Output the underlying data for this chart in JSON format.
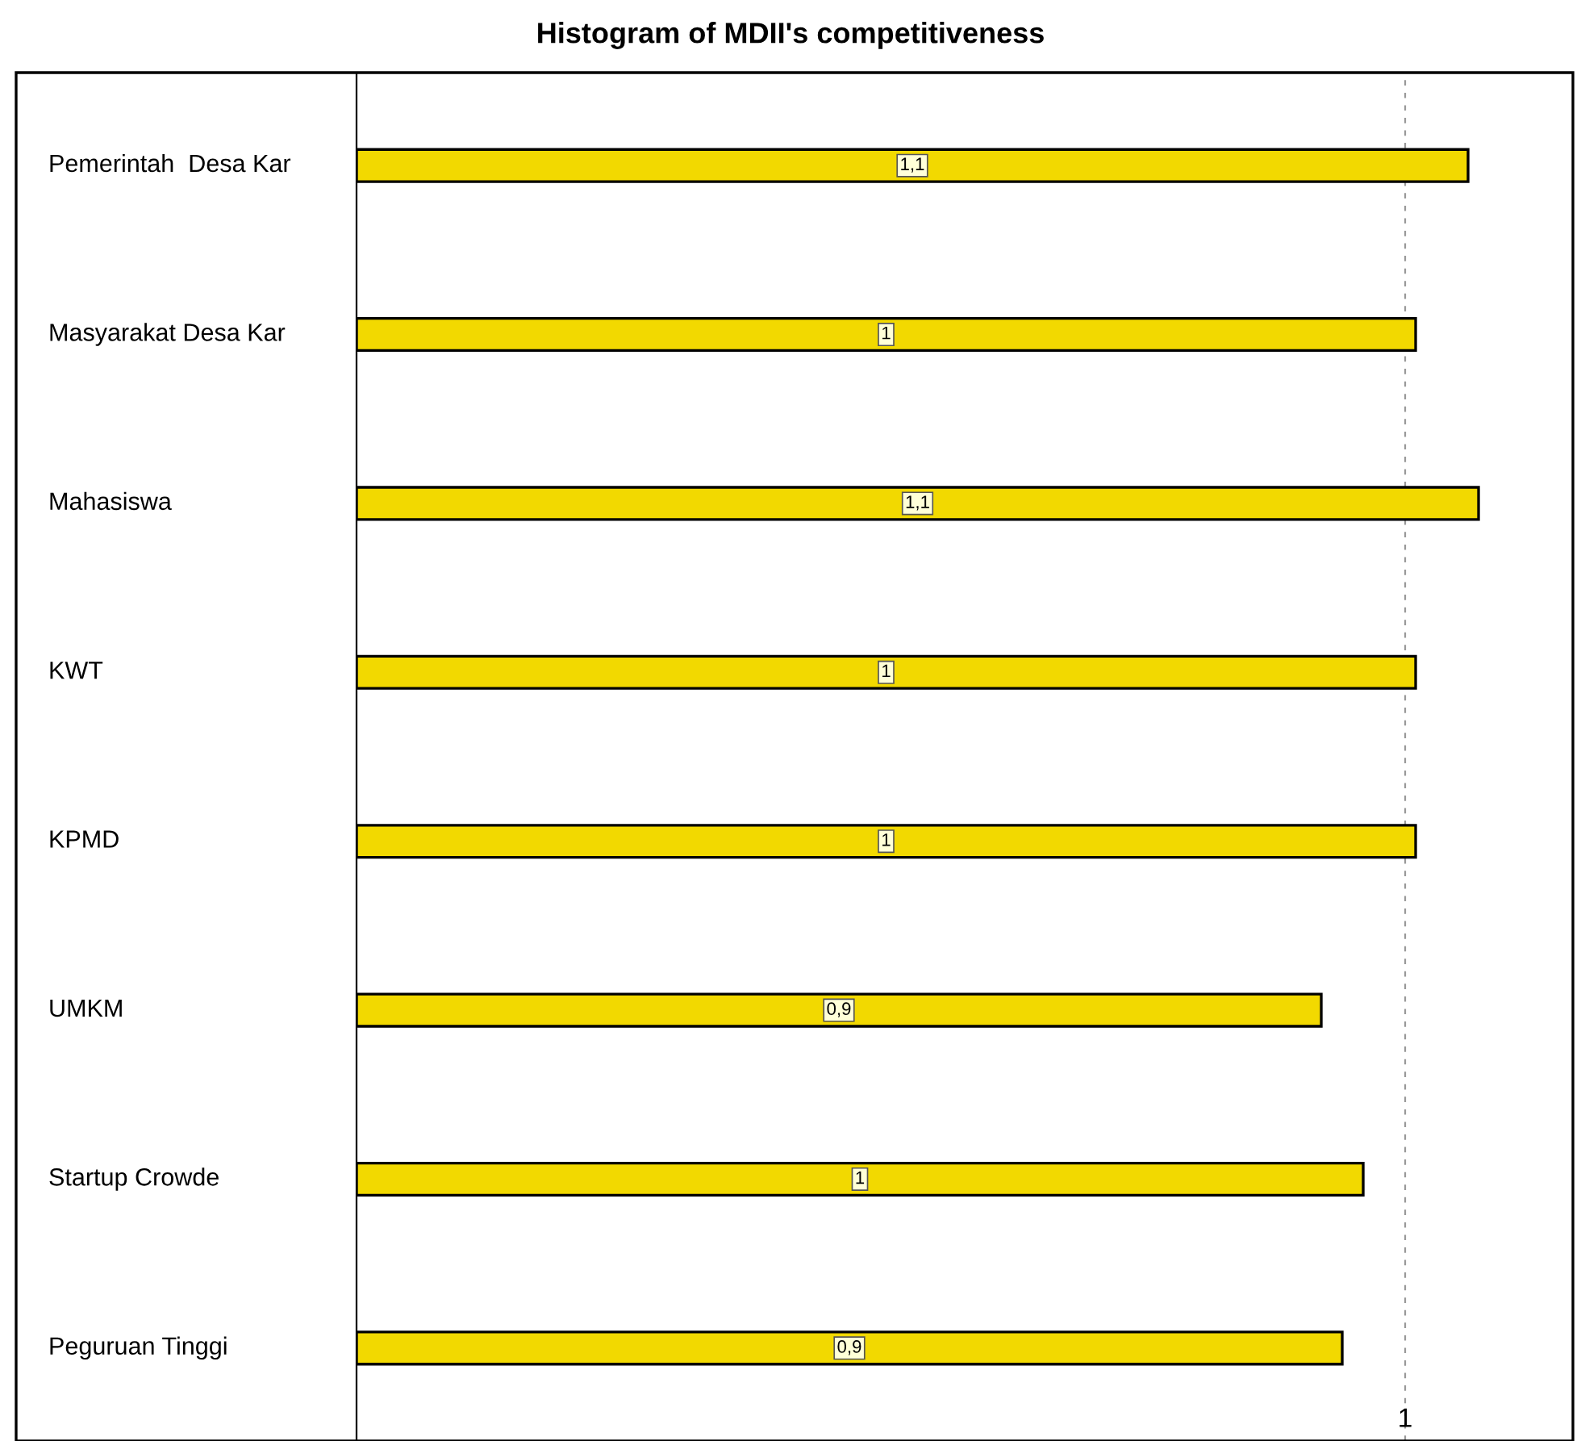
{
  "chart_data": {
    "type": "bar",
    "orientation": "horizontal",
    "title": "Histogram of MDII's competitiveness",
    "categories": [
      "Pemerintah  Desa Kar",
      "Masyarakat Desa Kar",
      "Mahasiswa",
      "KWT",
      "KPMD",
      "UMKM",
      "Startup Crowde",
      "Peguruan Tinggi"
    ],
    "values": [
      1.06,
      1.01,
      1.07,
      1.01,
      1.01,
      0.92,
      0.96,
      0.94
    ],
    "value_labels": [
      "1,1",
      "1",
      "1,1",
      "1",
      "1",
      "0,9",
      "1",
      "0,9"
    ],
    "color": "#f2d900",
    "xlim": [
      0,
      1.16
    ],
    "ref_lines": [
      {
        "axis": "x",
        "value": 1,
        "label": "1",
        "color": "#999999",
        "line_style": "dashed"
      }
    ],
    "legend": false
  }
}
